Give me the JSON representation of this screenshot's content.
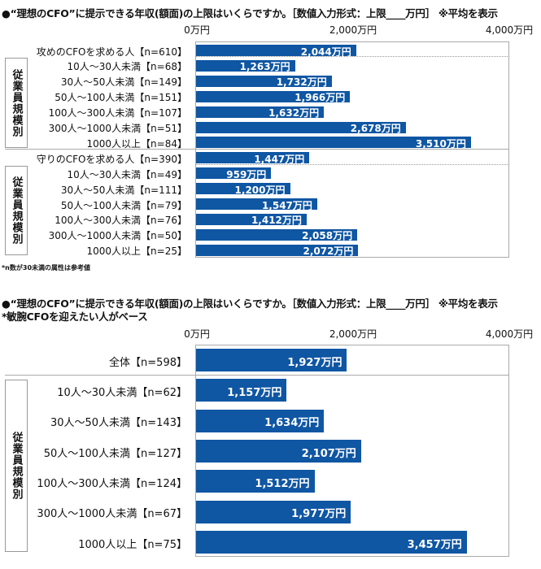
{
  "chart_data": [
    {
      "type": "bar",
      "title": "●“理想のCFO”に提示できる年収(額面)の上限はいくらですか。［数値入力形式：上限____万円］ ※平均を表示",
      "xlim": [
        0,
        4000
      ],
      "tick_labels": [
        "0万円",
        "2,000万円",
        "4,000万円"
      ],
      "group_label": "従業員規模別",
      "footnote": "*n数が30未満の属性は参考値",
      "bar_color": "#0f56a3",
      "categories": [
        "攻めのCFOを求める人【n=610】",
        "10人～30人未満【n=68】",
        "30人～50人未満【n=149】",
        "50人～100人未満【n=151】",
        "100人～300人未満【n=107】",
        "300人～1000人未満【n=51】",
        "1000人以上【n=84】",
        "守りのCFOを求める人【n=390】",
        "10人～30人未満【n=49】",
        "30人～50人未満【n=111】",
        "50人～100人未満【n=79】",
        "100人～300人未満【n=76】",
        "300人～1000人未満【n=50】",
        "1000人以上【n=25】"
      ],
      "values": [
        2044,
        1263,
        1732,
        1966,
        1632,
        2678,
        3510,
        1447,
        959,
        1200,
        1547,
        1412,
        2058,
        2072
      ],
      "value_labels": [
        "2,044万円",
        "1,263万円",
        "1,732万円",
        "1,966万円",
        "1,632万円",
        "2,678万円",
        "3,510万円",
        "1,447万円",
        "959万円",
        "1,200万円",
        "1,547万円",
        "1,412万円",
        "2,058万円",
        "2,072万円"
      ]
    },
    {
      "type": "bar",
      "title": "●“理想のCFO”に提示できる年収(額面)の上限はいくらですか。［数値入力形式：上限____万円］ ※平均を表示",
      "subtitle": "*敏腕CFOを迎えたい人がベース",
      "xlim": [
        0,
        4000
      ],
      "tick_labels": [
        "0万円",
        "2,000万円",
        "4,000万円"
      ],
      "group_label": "従業員規模別",
      "bar_color": "#0f56a3",
      "categories": [
        "全体【n=598】",
        "10人～30人未満【n=62】",
        "30人～50人未満【n=143】",
        "50人～100人未満【n=127】",
        "100人～300人未満【n=124】",
        "300人～1000人未満【n=67】",
        "1000人以上【n=75】"
      ],
      "values": [
        1927,
        1157,
        1634,
        2107,
        1512,
        1977,
        3457
      ],
      "value_labels": [
        "1,927万円",
        "1,157万円",
        "1,634万円",
        "2,107万円",
        "1,512万円",
        "1,977万円",
        "3,457万円"
      ]
    }
  ]
}
